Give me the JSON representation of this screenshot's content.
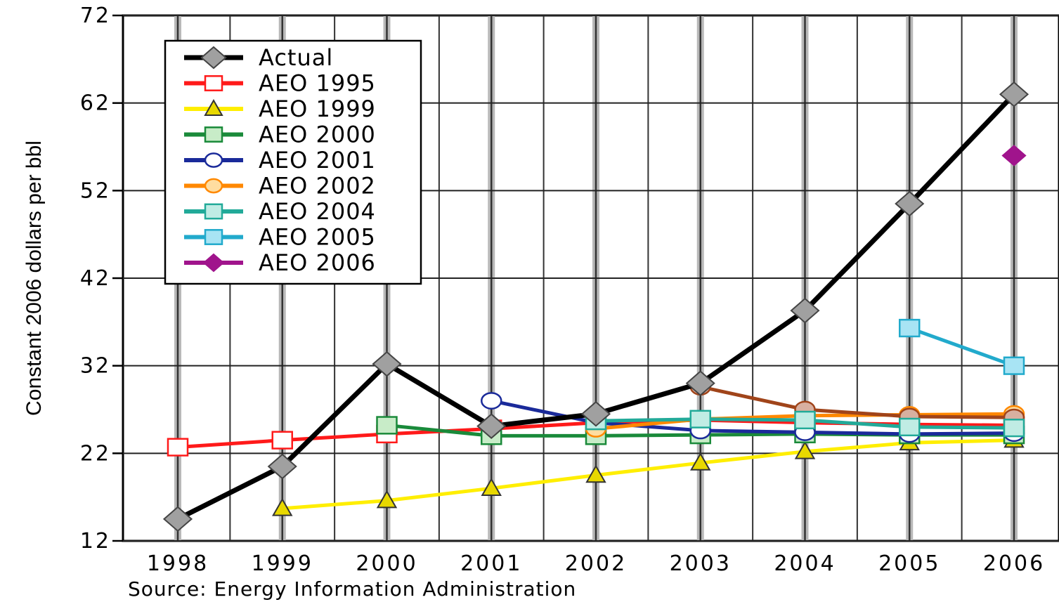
{
  "chart_data": {
    "type": "line",
    "ylabel": "Constant 2006 dollars per bbl",
    "source": "Source: Energy Information Administration",
    "x": [
      1998,
      1999,
      2000,
      2001,
      2002,
      2003,
      2004,
      2005,
      2006
    ],
    "x_tick_labels": [
      "1998",
      "1999",
      "2000",
      "2001",
      "2002",
      "2003",
      "2004",
      "2005",
      "2006"
    ],
    "y_ticks": [
      12,
      22,
      32,
      42,
      52,
      62,
      72
    ],
    "y_tick_labels": [
      "12",
      "22",
      "32",
      "42",
      "52",
      "62",
      "72"
    ],
    "ylim": [
      12,
      72
    ],
    "xlim": [
      1998,
      2006
    ],
    "grid": true,
    "legend_position": "top-left",
    "series": [
      {
        "name": "Actual",
        "color": "#000000",
        "marker": "diamond",
        "marker_fill": "#a0a0a0",
        "points": [
          [
            1998,
            14.5
          ],
          [
            1999,
            20.5
          ],
          [
            2000,
            32.2
          ],
          [
            2001,
            25.1
          ],
          [
            2002,
            26.5
          ],
          [
            2003,
            30.0
          ],
          [
            2004,
            38.3
          ],
          [
            2005,
            50.5
          ],
          [
            2006,
            63.0
          ]
        ]
      },
      {
        "name": "AEO 1995",
        "color": "#ff1a1a",
        "marker": "square",
        "marker_fill": "#ffffff",
        "points": [
          [
            1998,
            22.7
          ],
          [
            1999,
            23.5
          ],
          [
            2000,
            24.2
          ],
          [
            2001,
            24.8
          ],
          [
            2002,
            25.5
          ],
          [
            2003,
            25.8
          ],
          [
            2004,
            25.5
          ],
          [
            2005,
            25.3
          ],
          [
            2006,
            25.2
          ]
        ]
      },
      {
        "name": "AEO 1999",
        "color": "#ffee00",
        "marker": "triangle",
        "marker_fill": "#e8d800",
        "points": [
          [
            1999,
            15.7
          ],
          [
            2000,
            16.6
          ],
          [
            2001,
            18.0
          ],
          [
            2002,
            19.5
          ],
          [
            2003,
            20.9
          ],
          [
            2004,
            22.2
          ],
          [
            2005,
            23.2
          ],
          [
            2006,
            23.5
          ]
        ]
      },
      {
        "name": "AEO 2000",
        "color": "#1a8a3a",
        "marker": "square",
        "marker_fill": "#c8ecc8",
        "points": [
          [
            2000,
            25.2
          ],
          [
            2001,
            24.0
          ],
          [
            2002,
            24.0
          ],
          [
            2003,
            24.1
          ],
          [
            2004,
            24.2
          ],
          [
            2005,
            24.1
          ],
          [
            2006,
            24.1
          ]
        ]
      },
      {
        "name": "AEO 2001",
        "color": "#1a2a9a",
        "marker": "circle",
        "marker_fill": "#ffffff",
        "points": [
          [
            2001,
            28.0
          ],
          [
            2002,
            25.5
          ],
          [
            2003,
            24.6
          ],
          [
            2004,
            24.4
          ],
          [
            2005,
            24.2
          ],
          [
            2006,
            24.3
          ]
        ]
      },
      {
        "name": "AEO 2002",
        "color": "#ff8800",
        "marker": "circle",
        "marker_fill": "#ffdda0",
        "points": [
          [
            2002,
            24.8
          ],
          [
            2003,
            25.9
          ],
          [
            2004,
            26.3
          ],
          [
            2005,
            26.4
          ],
          [
            2006,
            26.5
          ]
        ]
      },
      {
        "name": "AEO 2004",
        "color": "#a0441a",
        "marker": "circle",
        "marker_fill": "#d8b0a0",
        "points": [
          [
            2003,
            29.6
          ],
          [
            2004,
            27.0
          ],
          [
            2005,
            26.2
          ],
          [
            2006,
            26.1
          ]
        ]
      },
      {
        "name": "AEO 2005",
        "color": "#22aa99",
        "marker": "square",
        "marker_fill": "#c0ece4",
        "points": [
          [
            2002,
            25.7
          ],
          [
            2003,
            25.9
          ],
          [
            2004,
            25.8
          ],
          [
            2005,
            25.0
          ],
          [
            2006,
            24.9
          ]
        ]
      },
      {
        "name": "AEO 2006",
        "color": "#22aacc",
        "marker": "square",
        "marker_fill": "#a8e4f4",
        "points": [
          [
            2005,
            36.3
          ],
          [
            2006,
            32.0
          ]
        ]
      },
      {
        "name": "AEO 2006 marker",
        "color": "#a0148c",
        "marker": "diamond",
        "marker_fill": "#a0148c",
        "points": [
          [
            2006,
            56.0
          ]
        ]
      }
    ],
    "legend": [
      {
        "label": "Actual",
        "series": 0
      },
      {
        "label": "AEO 1995",
        "series": 1
      },
      {
        "label": "AEO 1999",
        "series": 2
      },
      {
        "label": "AEO 2000",
        "series": 3
      },
      {
        "label": "AEO 2001",
        "series": 4
      },
      {
        "label": "AEO 2002",
        "series": 5
      },
      {
        "label": "AEO 2004",
        "series": 7
      },
      {
        "label": "AEO 2005",
        "series": 8
      },
      {
        "label": "AEO 2006",
        "series": 9
      }
    ]
  }
}
